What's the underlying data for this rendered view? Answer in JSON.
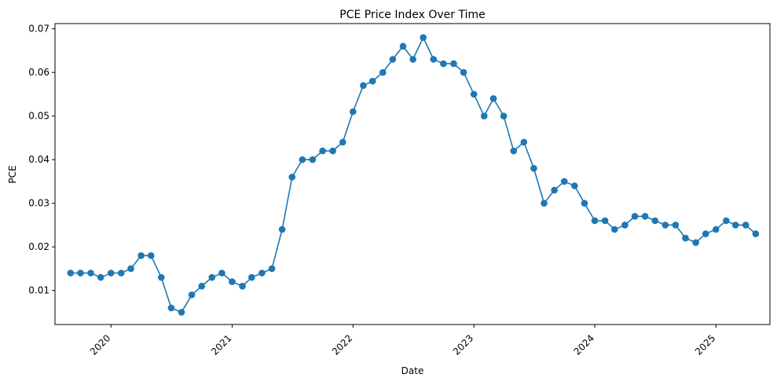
{
  "chart_data": {
    "type": "line",
    "title": "PCE Price Index Over Time",
    "xlabel": "Date",
    "ylabel": "PCE",
    "x_ticks": [
      "2020",
      "2021",
      "2022",
      "2023",
      "2024",
      "2025"
    ],
    "y_ticks": [
      "0.01",
      "0.02",
      "0.03",
      "0.04",
      "0.05",
      "0.06",
      "0.07"
    ],
    "xlim": [
      "2019-07-16",
      "2025-06-13"
    ],
    "ylim": [
      0.0022,
      0.0712
    ],
    "grid": false,
    "marker": "circle",
    "color": "#1f77b4",
    "series": [
      {
        "x": [
          "2019-09-01",
          "2019-10-01",
          "2019-11-01",
          "2019-12-01",
          "2020-01-01",
          "2020-02-01",
          "2020-03-01",
          "2020-04-01",
          "2020-05-01",
          "2020-06-01",
          "2020-07-01",
          "2020-08-01",
          "2020-09-01",
          "2020-10-01",
          "2020-11-01",
          "2020-12-01",
          "2021-01-01",
          "2021-02-01",
          "2021-03-01",
          "2021-04-01",
          "2021-05-01",
          "2021-06-01",
          "2021-07-01",
          "2021-08-01",
          "2021-09-01",
          "2021-10-01",
          "2021-11-01",
          "2021-12-01",
          "2022-01-01",
          "2022-02-01",
          "2022-03-01",
          "2022-04-01",
          "2022-05-01",
          "2022-06-01",
          "2022-07-01",
          "2022-08-01",
          "2022-09-01",
          "2022-10-01",
          "2022-11-01",
          "2022-12-01",
          "2023-01-01",
          "2023-02-01",
          "2023-03-01",
          "2023-04-01",
          "2023-05-01",
          "2023-06-01",
          "2023-07-01",
          "2023-08-01",
          "2023-09-01",
          "2023-10-01",
          "2023-11-01",
          "2023-12-01",
          "2024-01-01",
          "2024-02-01",
          "2024-03-01",
          "2024-04-01",
          "2024-05-01",
          "2024-06-01",
          "2024-07-01",
          "2024-08-01",
          "2024-09-01",
          "2024-10-01",
          "2024-11-01",
          "2024-12-01",
          "2025-01-01",
          "2025-02-01",
          "2025-03-01",
          "2025-04-01",
          "2025-05-01"
        ],
        "y": [
          0.014,
          0.014,
          0.014,
          0.013,
          0.014,
          0.014,
          0.015,
          0.018,
          0.018,
          0.013,
          0.006,
          0.005,
          0.009,
          0.011,
          0.013,
          0.014,
          0.012,
          0.011,
          0.013,
          0.014,
          0.015,
          0.024,
          0.036,
          0.04,
          0.04,
          0.042,
          0.042,
          0.044,
          0.051,
          0.057,
          0.058,
          0.06,
          0.063,
          0.066,
          0.063,
          0.068,
          0.063,
          0.062,
          0.062,
          0.06,
          0.055,
          0.05,
          0.054,
          0.05,
          0.042,
          0.044,
          0.038,
          0.03,
          0.033,
          0.035,
          0.034,
          0.03,
          0.026,
          0.026,
          0.024,
          0.025,
          0.027,
          0.027,
          0.026,
          0.025,
          0.025,
          0.022,
          0.021,
          0.023,
          0.024,
          0.026,
          0.025,
          0.025,
          0.023
        ]
      }
    ]
  }
}
